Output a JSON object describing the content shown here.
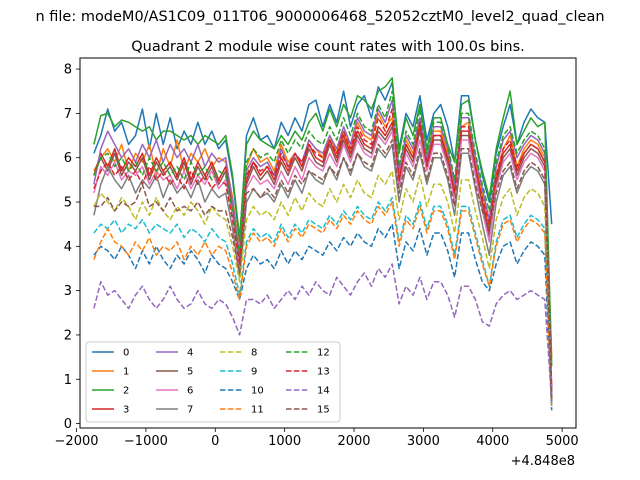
{
  "suptitle": "n file: modeM0/AS1C09_011T06_9000006468_52052cztM0_level2_quad_clean",
  "chart_data": {
    "type": "line",
    "title": "Quadrant 2 module wise count rates with 100.0s bins.",
    "x_offset_label": "+4.848e8",
    "xlim": [
      -1950,
      5200
    ],
    "ylim": [
      -0.1,
      8.25
    ],
    "x_ticks": [
      -2000,
      -1000,
      0,
      1000,
      2000,
      3000,
      4000,
      5000
    ],
    "x_tick_labels": [
      "−2000",
      "−1000",
      "0",
      "1000",
      "2000",
      "3000",
      "4000",
      "5000"
    ],
    "y_ticks": [
      0,
      1,
      2,
      3,
      4,
      5,
      6,
      7,
      8
    ],
    "y_tick_labels": [
      "0",
      "1",
      "2",
      "3",
      "4",
      "5",
      "6",
      "7",
      "8"
    ],
    "legend_position": "lower-left",
    "x": [
      -1750,
      -1650,
      -1550,
      -1450,
      -1350,
      -1250,
      -1150,
      -1050,
      -950,
      -850,
      -750,
      -650,
      -550,
      -450,
      -350,
      -250,
      -150,
      -50,
      50,
      150,
      250,
      350,
      450,
      550,
      650,
      750,
      850,
      950,
      1050,
      1150,
      1250,
      1350,
      1450,
      1550,
      1650,
      1750,
      1850,
      1950,
      2050,
      2150,
      2250,
      2350,
      2450,
      2550,
      2650,
      2750,
      2850,
      2950,
      3050,
      3150,
      3250,
      3350,
      3450,
      3550,
      3650,
      3750,
      3850,
      3950,
      4050,
      4150,
      4250,
      4350,
      4450,
      4550,
      4650,
      4750,
      4850
    ],
    "series": [
      {
        "name": "0",
        "color": "#1f77b4",
        "dash": "solid",
        "values": [
          6.1,
          6.5,
          7.1,
          6.6,
          6.8,
          6.3,
          6.5,
          7.1,
          6.2,
          7.0,
          6.3,
          6.9,
          6.2,
          6.6,
          6.3,
          6.8,
          6.3,
          6.6,
          6.2,
          6.4,
          5.5,
          4.1,
          6.5,
          6.9,
          6.4,
          6.5,
          6.2,
          6.8,
          6.5,
          6.9,
          6.6,
          7.2,
          7.3,
          6.7,
          7.2,
          6.8,
          7.5,
          6.7,
          7.2,
          7.4,
          6.9,
          7.6,
          7.3,
          7.7,
          6.2,
          7.0,
          6.7,
          7.4,
          6.4,
          7.0,
          7.2,
          6.7,
          5.9,
          7.4,
          7.4,
          6.4,
          5.6,
          5.0,
          6.1,
          6.7,
          7.2,
          6.3,
          6.8,
          7.1,
          6.9,
          6.8,
          4.5
        ]
      },
      {
        "name": "1",
        "color": "#ff7f0e",
        "dash": "solid",
        "values": [
          5.7,
          6.0,
          6.2,
          5.9,
          6.3,
          5.7,
          6.1,
          5.9,
          6.3,
          5.6,
          6.2,
          5.8,
          6.4,
          5.7,
          6.1,
          5.9,
          6.2,
          5.8,
          6.0,
          5.9,
          5.1,
          3.9,
          5.8,
          6.2,
          5.9,
          6.0,
          5.7,
          6.3,
          5.9,
          6.1,
          5.8,
          6.4,
          6.2,
          6.0,
          6.5,
          6.1,
          6.6,
          6.2,
          6.8,
          6.5,
          6.4,
          7.0,
          6.7,
          6.9,
          5.6,
          6.4,
          6.1,
          6.8,
          6.0,
          6.6,
          6.6,
          6.1,
          5.3,
          6.7,
          6.8,
          5.9,
          5.2,
          4.4,
          5.6,
          6.2,
          6.5,
          5.8,
          6.2,
          6.4,
          6.3,
          6.0,
          1.5
        ]
      },
      {
        "name": "2",
        "color": "#2ca02c",
        "dash": "solid",
        "values": [
          6.3,
          6.95,
          7.0,
          6.7,
          6.85,
          6.8,
          6.7,
          6.6,
          6.7,
          6.4,
          6.6,
          6.6,
          6.5,
          6.4,
          6.5,
          6.3,
          6.5,
          6.4,
          6.3,
          6.5,
          5.6,
          4.2,
          6.3,
          6.6,
          6.4,
          6.3,
          6.2,
          6.5,
          6.3,
          6.6,
          6.4,
          6.8,
          7.0,
          6.6,
          7.1,
          6.7,
          7.2,
          6.9,
          7.4,
          7.3,
          7.1,
          7.5,
          7.6,
          7.8,
          6.1,
          6.9,
          6.5,
          7.2,
          6.2,
          6.9,
          6.9,
          6.3,
          5.9,
          7.2,
          7.3,
          6.4,
          5.7,
          5.1,
          6.2,
          6.9,
          7.5,
          6.3,
          6.6,
          6.9,
          6.7,
          6.8,
          1.3
        ]
      },
      {
        "name": "3",
        "color": "#d62728",
        "dash": "solid",
        "values": [
          5.6,
          6.1,
          5.8,
          6.2,
          5.7,
          6.0,
          5.8,
          6.1,
          5.6,
          6.0,
          5.7,
          5.9,
          5.6,
          6.0,
          5.5,
          5.9,
          5.6,
          5.9,
          5.5,
          5.8,
          4.9,
          3.7,
          5.5,
          5.9,
          5.6,
          5.8,
          5.5,
          6.0,
          5.7,
          6.1,
          5.8,
          6.3,
          6.0,
          5.9,
          6.4,
          6.0,
          6.5,
          6.1,
          6.6,
          6.3,
          6.2,
          6.7,
          6.5,
          6.8,
          5.5,
          6.3,
          6.0,
          6.7,
          5.9,
          6.5,
          6.5,
          6.0,
          5.2,
          6.6,
          6.6,
          5.8,
          5.0,
          4.3,
          5.5,
          6.1,
          6.3,
          5.7,
          6.1,
          6.3,
          6.2,
          5.9,
          0.8
        ]
      },
      {
        "name": "4",
        "color": "#9467bd",
        "dash": "solid",
        "values": [
          5.4,
          6.2,
          6.6,
          6.3,
          6.0,
          6.2,
          5.9,
          6.3,
          6.0,
          6.4,
          5.9,
          6.3,
          6.0,
          6.2,
          5.9,
          6.3,
          5.8,
          6.1,
          5.9,
          6.0,
          5.0,
          3.8,
          5.7,
          6.0,
          5.8,
          5.9,
          5.6,
          6.2,
          5.8,
          6.1,
          5.9,
          6.4,
          6.2,
          6.1,
          6.5,
          6.2,
          6.7,
          6.3,
          6.9,
          6.6,
          6.5,
          7.1,
          6.8,
          7.3,
          5.7,
          6.5,
          6.2,
          6.9,
          6.0,
          6.7,
          6.7,
          6.2,
          5.4,
          6.9,
          6.9,
          6.0,
          5.3,
          4.6,
          5.8,
          6.4,
          6.6,
          6.0,
          6.3,
          6.5,
          6.4,
          6.1,
          0.7
        ]
      },
      {
        "name": "5",
        "color": "#8c564b",
        "dash": "solid",
        "values": [
          5.6,
          6.0,
          5.7,
          6.1,
          5.6,
          5.9,
          5.7,
          6.0,
          5.5,
          5.9,
          5.6,
          5.8,
          5.5,
          5.9,
          5.4,
          5.8,
          5.5,
          5.8,
          5.4,
          5.7,
          4.8,
          3.6,
          5.4,
          5.8,
          5.5,
          5.7,
          5.4,
          5.9,
          5.6,
          6.0,
          5.7,
          6.2,
          5.9,
          5.8,
          6.3,
          5.9,
          6.4,
          6.0,
          6.5,
          6.2,
          6.1,
          6.6,
          6.4,
          6.7,
          5.4,
          6.2,
          5.9,
          6.6,
          5.8,
          6.4,
          6.4,
          5.9,
          5.1,
          6.5,
          6.5,
          5.7,
          4.9,
          4.2,
          5.4,
          6.0,
          6.2,
          5.6,
          6.0,
          6.2,
          6.1,
          5.8,
          0.6
        ]
      },
      {
        "name": "6",
        "color": "#e377c2",
        "dash": "solid",
        "values": [
          5.2,
          5.8,
          5.6,
          5.9,
          5.5,
          5.7,
          5.6,
          5.8,
          5.4,
          5.7,
          5.5,
          5.6,
          5.3,
          5.7,
          5.3,
          5.6,
          5.4,
          5.7,
          5.3,
          5.5,
          4.7,
          3.5,
          5.3,
          5.6,
          5.4,
          5.5,
          5.3,
          5.7,
          5.4,
          5.8,
          5.5,
          6.0,
          5.8,
          5.7,
          6.1,
          5.8,
          6.3,
          5.9,
          6.4,
          6.1,
          6.0,
          6.5,
          6.3,
          6.6,
          5.3,
          6.1,
          5.8,
          6.4,
          5.7,
          6.3,
          6.3,
          5.8,
          5.0,
          6.4,
          6.4,
          5.6,
          4.8,
          4.1,
          5.3,
          5.9,
          6.1,
          5.5,
          5.9,
          6.1,
          6.0,
          5.7,
          0.5
        ]
      },
      {
        "name": "7",
        "color": "#7f7f7f",
        "dash": "solid",
        "values": [
          4.7,
          5.4,
          5.8,
          5.5,
          5.3,
          5.6,
          5.2,
          5.5,
          5.3,
          5.6,
          5.1,
          5.5,
          5.2,
          5.4,
          5.1,
          5.5,
          5.0,
          5.3,
          5.1,
          5.2,
          4.4,
          3.3,
          5.0,
          5.3,
          5.1,
          5.2,
          5.0,
          5.4,
          5.1,
          5.5,
          5.2,
          5.7,
          5.5,
          5.4,
          5.8,
          5.5,
          6.0,
          5.6,
          6.1,
          5.8,
          5.7,
          6.2,
          6.0,
          6.3,
          5.0,
          5.8,
          5.5,
          6.1,
          5.4,
          6.0,
          6.0,
          5.5,
          4.7,
          6.1,
          6.1,
          5.3,
          4.5,
          3.8,
          5.0,
          5.6,
          5.8,
          5.2,
          5.6,
          5.8,
          5.7,
          5.4,
          0.4
        ]
      },
      {
        "name": "8",
        "color": "#bcbd22",
        "dash": "dashed",
        "values": [
          4.9,
          5.2,
          5.0,
          4.8,
          5.1,
          4.9,
          4.6,
          5.0,
          4.7,
          5.1,
          4.8,
          4.6,
          4.9,
          4.7,
          5.0,
          4.8,
          4.5,
          4.9,
          4.7,
          4.6,
          4.0,
          3.2,
          4.6,
          4.9,
          4.7,
          4.8,
          4.6,
          5.0,
          4.7,
          5.1,
          4.8,
          5.2,
          5.0,
          4.9,
          5.3,
          5.0,
          5.4,
          5.1,
          5.5,
          5.2,
          5.1,
          5.6,
          5.4,
          5.7,
          4.6,
          5.3,
          5.0,
          5.6,
          4.9,
          5.4,
          5.4,
          5.0,
          4.3,
          5.5,
          5.5,
          4.8,
          4.2,
          3.5,
          4.6,
          5.1,
          5.3,
          4.7,
          5.1,
          5.3,
          5.2,
          4.9,
          0.5
        ]
      },
      {
        "name": "9",
        "color": "#17becf",
        "dash": "dashed",
        "values": [
          4.3,
          4.5,
          4.4,
          4.6,
          4.3,
          4.5,
          4.4,
          4.6,
          4.3,
          4.5,
          4.4,
          4.3,
          4.5,
          4.2,
          4.4,
          4.3,
          4.1,
          4.4,
          4.2,
          4.1,
          3.6,
          2.9,
          4.1,
          4.4,
          4.2,
          4.3,
          4.1,
          4.5,
          4.2,
          4.5,
          4.3,
          4.6,
          4.5,
          4.4,
          4.7,
          4.5,
          4.8,
          4.6,
          4.9,
          4.7,
          4.6,
          5.0,
          4.8,
          5.1,
          4.1,
          4.7,
          4.5,
          5.0,
          4.4,
          4.9,
          4.9,
          4.5,
          3.8,
          4.9,
          4.9,
          4.3,
          3.7,
          3.1,
          4.1,
          4.6,
          4.7,
          4.2,
          4.5,
          4.7,
          4.6,
          4.4,
          0.4
        ]
      },
      {
        "name": "10",
        "color": "#1f77b4",
        "dash": "dashed",
        "values": [
          3.8,
          4.0,
          3.9,
          3.7,
          4.0,
          3.8,
          3.5,
          3.9,
          3.6,
          4.0,
          3.7,
          3.5,
          3.8,
          3.6,
          3.9,
          3.7,
          3.4,
          3.8,
          3.6,
          3.5,
          3.2,
          2.8,
          3.5,
          3.8,
          3.6,
          3.7,
          3.5,
          3.9,
          3.6,
          3.9,
          3.7,
          4.0,
          3.9,
          3.8,
          4.1,
          3.9,
          4.2,
          4.0,
          4.3,
          4.1,
          4.0,
          4.4,
          4.2,
          4.5,
          3.5,
          4.1,
          3.9,
          4.4,
          3.8,
          4.3,
          4.3,
          3.9,
          3.3,
          4.3,
          4.3,
          3.7,
          3.2,
          3.0,
          3.6,
          4.0,
          4.1,
          3.6,
          3.9,
          4.1,
          4.0,
          3.8,
          0.3
        ]
      },
      {
        "name": "11",
        "color": "#ff7f0e",
        "dash": "dashed",
        "values": [
          3.7,
          4.1,
          4.4,
          4.1,
          4.0,
          3.8,
          4.1,
          3.9,
          4.2,
          3.8,
          4.0,
          3.9,
          4.1,
          3.7,
          4.0,
          3.8,
          4.1,
          3.8,
          4.0,
          3.9,
          3.4,
          2.8,
          4.0,
          4.3,
          4.1,
          4.2,
          4.0,
          4.4,
          4.1,
          4.4,
          4.2,
          4.5,
          4.4,
          4.3,
          4.6,
          4.4,
          4.7,
          4.5,
          4.8,
          4.6,
          4.5,
          4.9,
          4.7,
          5.0,
          4.0,
          4.6,
          4.4,
          4.9,
          4.3,
          4.8,
          4.8,
          4.4,
          3.7,
          4.8,
          4.8,
          4.2,
          3.6,
          3.1,
          4.0,
          4.5,
          4.6,
          4.1,
          4.4,
          4.6,
          4.5,
          4.3,
          0.4
        ]
      },
      {
        "name": "12",
        "color": "#2ca02c",
        "dash": "dashed",
        "values": [
          5.6,
          6.0,
          6.1,
          5.8,
          6.0,
          5.7,
          5.9,
          5.6,
          6.0,
          5.7,
          5.9,
          5.6,
          5.8,
          5.5,
          5.9,
          5.6,
          5.8,
          5.5,
          5.7,
          5.6,
          4.8,
          3.8,
          5.9,
          6.2,
          6.0,
          6.1,
          5.9,
          6.4,
          6.1,
          6.4,
          6.2,
          6.6,
          6.4,
          6.3,
          6.7,
          6.4,
          6.9,
          6.5,
          7.0,
          6.7,
          6.6,
          7.2,
          6.9,
          7.5,
          5.8,
          6.6,
          6.3,
          7.1,
          6.1,
          6.8,
          6.8,
          6.3,
          5.5,
          7.0,
          7.0,
          6.1,
          5.4,
          4.8,
          5.9,
          6.5,
          6.7,
          6.1,
          6.4,
          6.6,
          6.5,
          6.2,
          0.5
        ]
      },
      {
        "name": "13",
        "color": "#d62728",
        "dash": "dashed",
        "values": [
          5.3,
          5.7,
          5.9,
          5.6,
          5.8,
          5.5,
          5.7,
          5.4,
          5.8,
          5.5,
          5.7,
          5.4,
          5.6,
          5.3,
          5.7,
          5.4,
          5.6,
          5.3,
          5.5,
          5.4,
          4.6,
          3.6,
          5.6,
          5.9,
          5.7,
          5.8,
          5.6,
          6.1,
          5.8,
          6.1,
          5.9,
          6.3,
          6.1,
          6.0,
          6.4,
          6.1,
          6.6,
          6.2,
          6.7,
          6.4,
          6.3,
          6.9,
          6.6,
          7.1,
          5.5,
          6.3,
          6.0,
          6.8,
          5.8,
          6.5,
          6.5,
          6.0,
          5.2,
          6.7,
          6.7,
          5.8,
          5.1,
          4.5,
          5.6,
          6.2,
          6.4,
          5.8,
          6.1,
          6.3,
          6.2,
          5.9,
          0.5
        ]
      },
      {
        "name": "14",
        "color": "#9467bd",
        "dash": "dashed",
        "values": [
          2.6,
          3.2,
          2.9,
          3.0,
          2.8,
          2.6,
          2.9,
          3.1,
          2.8,
          2.6,
          2.8,
          3.1,
          2.8,
          2.6,
          2.7,
          3.0,
          2.7,
          2.6,
          2.8,
          2.7,
          2.4,
          2.0,
          2.8,
          2.8,
          2.7,
          2.9,
          2.6,
          2.8,
          3.0,
          2.8,
          3.1,
          2.9,
          3.2,
          3.0,
          2.9,
          3.3,
          3.1,
          2.9,
          3.2,
          3.4,
          3.1,
          3.5,
          3.3,
          3.6,
          2.7,
          3.1,
          2.9,
          3.3,
          2.8,
          3.2,
          3.2,
          2.9,
          2.4,
          3.1,
          3.1,
          2.8,
          2.3,
          2.2,
          2.7,
          2.9,
          3.0,
          2.8,
          2.9,
          3.0,
          2.9,
          2.8,
          0.5
        ]
      },
      {
        "name": "15",
        "color": "#8c564b",
        "dash": "dashed",
        "values": [
          4.9,
          4.9,
          5.1,
          4.8,
          5.0,
          4.9,
          5.0,
          5.4,
          4.9,
          5.0,
          4.8,
          5.1,
          4.8,
          4.9,
          4.8,
          5.0,
          4.7,
          4.9,
          4.8,
          4.8,
          4.2,
          3.4,
          5.2,
          5.3,
          5.1,
          5.3,
          5.1,
          5.5,
          5.2,
          5.6,
          5.4,
          5.7,
          5.6,
          5.5,
          5.8,
          5.6,
          6.0,
          5.7,
          6.1,
          5.9,
          5.8,
          6.3,
          6.1,
          6.4,
          5.2,
          5.9,
          5.6,
          6.2,
          5.5,
          6.1,
          6.1,
          5.6,
          4.9,
          6.2,
          6.2,
          5.4,
          4.8,
          4.4,
          5.2,
          5.7,
          5.9,
          5.3,
          5.7,
          5.9,
          5.8,
          5.5,
          0.6
        ]
      }
    ]
  }
}
